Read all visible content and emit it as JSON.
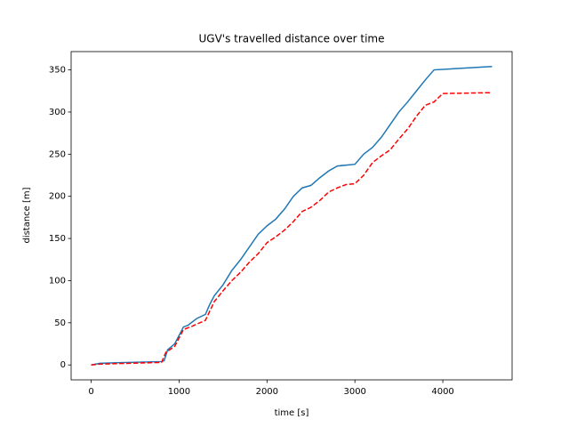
{
  "chart_data": {
    "type": "line",
    "title": "UGV's travelled distance over time",
    "xlabel": "time [s]",
    "ylabel": "distance [m]",
    "xlim": [
      -228,
      4788
    ],
    "ylim": [
      -17.7,
      371.7
    ],
    "xticks": [
      0,
      1000,
      2000,
      3000,
      4000
    ],
    "yticks": [
      0,
      50,
      100,
      150,
      200,
      250,
      300,
      350
    ],
    "series": [
      {
        "color": "#1f77b4",
        "linestyle": "solid",
        "x": [
          0,
          100,
          800,
          830,
          870,
          950,
          1000,
          1050,
          1100,
          1200,
          1300,
          1350,
          1400,
          1500,
          1600,
          1700,
          1800,
          1900,
          2000,
          2100,
          2200,
          2300,
          2400,
          2500,
          2600,
          2700,
          2800,
          3000,
          3100,
          3200,
          3300,
          3400,
          3500,
          3600,
          3700,
          3800,
          3900,
          4560
        ],
        "values": [
          0,
          2,
          4,
          5,
          18,
          25,
          35,
          45,
          47,
          55,
          60,
          72,
          82,
          95,
          112,
          125,
          140,
          155,
          165,
          173,
          185,
          200,
          210,
          213,
          222,
          230,
          236,
          238,
          250,
          258,
          270,
          285,
          300,
          312,
          325,
          338,
          350,
          354
        ]
      },
      {
        "color": "#ff0000",
        "linestyle": "dashed",
        "x": [
          0,
          100,
          800,
          850,
          950,
          1050,
          1150,
          1300,
          1400,
          1500,
          1600,
          1700,
          1800,
          1900,
          2000,
          2100,
          2200,
          2300,
          2400,
          2500,
          2600,
          2700,
          2800,
          2900,
          3000,
          3100,
          3200,
          3300,
          3400,
          3500,
          3600,
          3700,
          3800,
          3900,
          4000,
          4560
        ],
        "values": [
          0,
          1,
          3,
          15,
          22,
          42,
          46,
          53,
          75,
          88,
          100,
          110,
          122,
          132,
          145,
          152,
          160,
          170,
          182,
          187,
          195,
          205,
          210,
          214,
          215,
          225,
          240,
          248,
          255,
          268,
          280,
          295,
          308,
          312,
          322,
          323
        ]
      }
    ]
  }
}
